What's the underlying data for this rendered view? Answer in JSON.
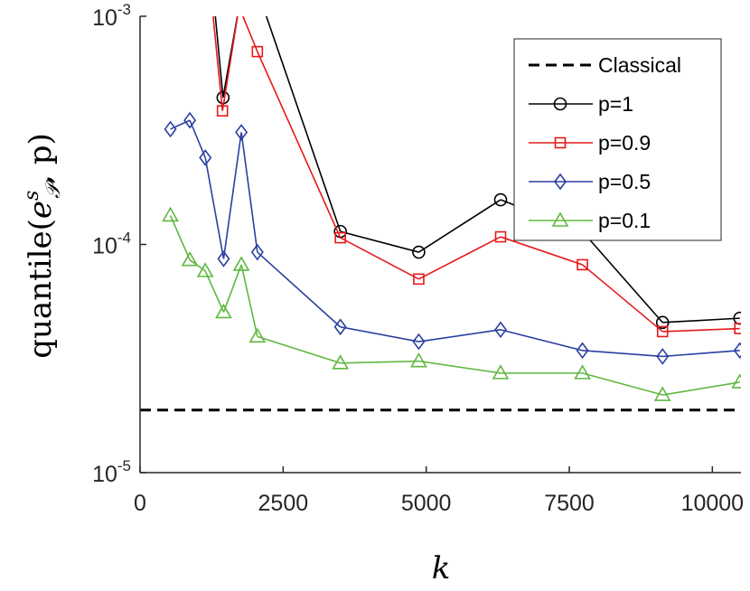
{
  "chart_data": {
    "type": "line",
    "title": "",
    "xlabel": "k",
    "ylabel": "quantile(e^s_P, p)",
    "ylabel_parts": {
      "prefix": "quantile(",
      "base": "e",
      "sub": "𝒫",
      "sup": "s",
      "suffix": ", p)"
    },
    "xscale": "linear",
    "yscale": "log",
    "xlim": [
      0,
      10500
    ],
    "ylim": [
      1e-05,
      0.001
    ],
    "xticks": [
      0,
      2500,
      5000,
      7500,
      10000
    ],
    "xtick_labels": [
      "0",
      "2500",
      "5000",
      "7500",
      "10000"
    ],
    "yticks": [
      1e-05,
      0.0001,
      0.001
    ],
    "ytick_labels": [
      {
        "base": "10",
        "exp": "-5"
      },
      {
        "base": "10",
        "exp": "-4"
      },
      {
        "base": "10",
        "exp": "-3"
      }
    ],
    "grid": false,
    "legend_position": "top-right",
    "series": [
      {
        "name": "Classical",
        "color": "#000000",
        "style": "dashed",
        "marker": "none",
        "x": [
          0,
          10500
        ],
        "y": [
          1.88e-05,
          1.88e-05
        ]
      },
      {
        "name": "p=1",
        "color": "#000000",
        "style": "solid",
        "marker": "circle",
        "x": [
          1300,
          1450,
          1580,
          1730,
          2150,
          3500,
          4870,
          6300,
          7730,
          9130,
          10480
        ],
        "y": [
          0.0011,
          0.00044,
          null,
          0.0011,
          0.0011,
          0.000114,
          9.25e-05,
          0.000157,
          0.000114,
          4.55e-05,
          4.75e-05
        ],
        "marker_mask": [
          false,
          true,
          false,
          false,
          false,
          true,
          true,
          true,
          true,
          true,
          true
        ],
        "segments": [
          [
            0,
            1
          ],
          [
            1,
            3
          ],
          [
            4,
            5
          ],
          [
            5,
            6
          ],
          [
            6,
            7
          ],
          [
            7,
            8
          ],
          [
            8,
            9
          ],
          [
            9,
            10
          ]
        ]
      },
      {
        "name": "p=0.9",
        "color": "#e41a1c",
        "style": "solid",
        "marker": "square",
        "x": [
          1260,
          1440,
          1730,
          2050,
          3500,
          4870,
          6300,
          7730,
          9130,
          10480
        ],
        "y": [
          0.0011,
          0.000385,
          0.0011,
          0.0007,
          0.000107,
          7.05e-05,
          0.000108,
          8.15e-05,
          4.15e-05,
          4.28e-05
        ],
        "marker_mask": [
          false,
          true,
          false,
          true,
          true,
          true,
          true,
          true,
          true,
          true
        ]
      },
      {
        "name": "p=0.5",
        "color": "#2b3fa0",
        "style": "solid",
        "marker": "diamond",
        "x": [
          530,
          870,
          1140,
          1460,
          1770,
          2050,
          3500,
          4870,
          6300,
          7730,
          9130,
          10480
        ],
        "y": [
          0.00032,
          0.00035,
          0.00024,
          8.65e-05,
          0.00031,
          9.25e-05,
          4.35e-05,
          3.75e-05,
          4.23e-05,
          3.43e-05,
          3.23e-05,
          3.43e-05
        ]
      },
      {
        "name": "p=0.1",
        "color": "#5fb840",
        "style": "solid",
        "marker": "triangle",
        "x": [
          530,
          870,
          1140,
          1460,
          1770,
          2050,
          3500,
          4870,
          6300,
          7730,
          9130,
          10480
        ],
        "y": [
          0.000134,
          8.55e-05,
          7.65e-05,
          5.05e-05,
          8.15e-05,
          3.95e-05,
          3.02e-05,
          3.08e-05,
          2.73e-05,
          2.73e-05,
          2.19e-05,
          2.49e-05
        ]
      }
    ]
  }
}
